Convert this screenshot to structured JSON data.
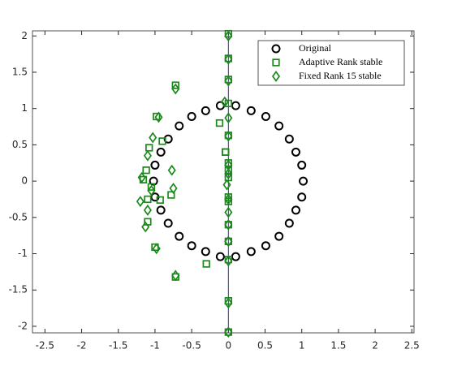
{
  "chart_data": {
    "type": "scatter",
    "xlim": [
      -2.67,
      2.53
    ],
    "ylim": [
      -2.09,
      2.07
    ],
    "xticks": [
      -2.5,
      -2,
      -1.5,
      -1,
      -0.5,
      0,
      0.5,
      1,
      1.5,
      2,
      2.5
    ],
    "yticks": [
      -2,
      -1.5,
      -1,
      -0.5,
      0,
      0.5,
      1,
      1.5,
      2
    ],
    "legend": "northeast",
    "series": [
      {
        "name": "Original",
        "color": "#000000",
        "marker": "circle",
        "x": [
          -0.11,
          0.1,
          0.31,
          0.51,
          0.69,
          0.83,
          0.92,
          1.0,
          1.02,
          -0.31,
          -0.5,
          -0.67,
          -0.82,
          -0.92,
          -1.0,
          -1.02,
          -0.11,
          0.1,
          0.31,
          0.51,
          0.69,
          0.83,
          0.92,
          1.0,
          -0.31,
          -0.5,
          -0.67,
          -0.82,
          -0.92,
          -1.0
        ],
        "values": [
          1.04,
          1.04,
          0.97,
          0.89,
          0.76,
          0.58,
          0.4,
          0.22,
          0,
          0.97,
          0.89,
          0.76,
          0.58,
          0.4,
          0.22,
          0,
          -1.04,
          -1.04,
          -0.97,
          -0.89,
          -0.76,
          -0.58,
          -0.4,
          -0.22,
          -0.97,
          -0.89,
          -0.76,
          -0.58,
          -0.4,
          -0.22
        ]
      },
      {
        "name": "Adaptive Rank stable",
        "color": "#1a8a1a",
        "marker": "square",
        "x": [
          0,
          0,
          0,
          0,
          0,
          -0.04,
          0,
          0,
          0,
          0,
          0,
          0,
          0,
          0,
          0,
          0,
          -0.04,
          -0.12,
          -0.3,
          -0.72,
          -0.98,
          -0.9,
          -1.08,
          -1.12,
          -1.16,
          -1.05,
          -0.78,
          -0.93,
          -1.1,
          -1.1,
          -1.0,
          -0.72
        ],
        "values": [
          2.03,
          1.69,
          1.4,
          1.07,
          0.63,
          0.4,
          0.25,
          0.15,
          0.05,
          -0.22,
          -0.28,
          -0.6,
          -0.83,
          -1.08,
          -1.65,
          -2.08,
          0.4,
          0.8,
          -1.14,
          1.32,
          0.89,
          0.55,
          0.46,
          0.15,
          0.02,
          -0.08,
          -0.19,
          -0.26,
          -0.25,
          -0.56,
          -0.91,
          -1.32
        ]
      },
      {
        "name": "Fixed Rank 15 stable",
        "color": "#1a8a1a",
        "marker": "diamond",
        "x": [
          0,
          0,
          0,
          -0.05,
          0,
          0,
          0,
          0,
          -0.02,
          0,
          0,
          0,
          0,
          0,
          0,
          0,
          -0.72,
          -0.95,
          -1.03,
          -1.1,
          -1.18,
          -0.77,
          -1.05,
          -0.75,
          -1.2,
          -1.1,
          -1.13,
          -0.98,
          -0.72
        ],
        "values": [
          2.0,
          1.68,
          1.38,
          1.09,
          0.87,
          0.62,
          0.22,
          0.1,
          -0.05,
          -0.25,
          -0.43,
          -0.6,
          -0.83,
          -1.1,
          -1.68,
          -2.08,
          1.27,
          0.88,
          0.6,
          0.35,
          0.05,
          0.15,
          -0.13,
          -0.1,
          -0.28,
          -0.4,
          -0.63,
          -0.93,
          -1.3
        ]
      }
    ]
  }
}
